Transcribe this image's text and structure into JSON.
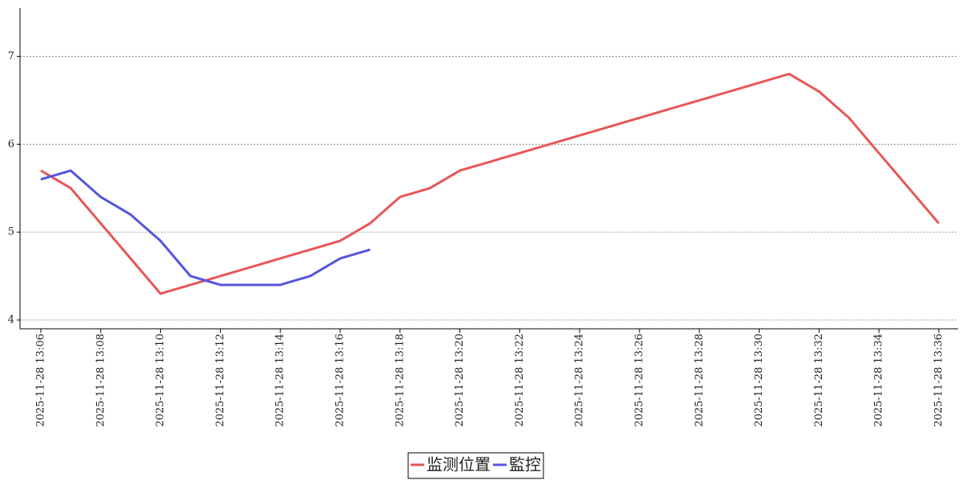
{
  "chart_data": {
    "type": "line",
    "x": [
      "2025-11-28 13:06",
      null,
      "2025-11-28 13:08",
      null,
      "2025-11-28 13:10",
      null,
      "2025-11-28 13:12",
      null,
      "2025-11-28 13:14",
      null,
      "2025-11-28 13:16",
      null,
      "2025-11-28 13:18",
      null,
      "2025-11-28 13:20",
      null,
      "2025-11-28 13:22",
      null,
      "2025-11-28 13:24",
      null,
      "2025-11-28 13:26",
      null,
      "2025-11-28 13:28",
      null,
      "2025-11-28 13:30",
      null,
      "2025-11-28 13:32",
      null,
      "2025-11-28 13:34",
      null,
      "2025-11-28 13:36"
    ],
    "series": [
      {
        "name": "监测位置",
        "color": "#e85656",
        "values": [
          5.7,
          5.5,
          5.1,
          4.7,
          4.3,
          4.4,
          4.5,
          4.6,
          4.7,
          4.8,
          4.9,
          5.1,
          5.4,
          5.5,
          5.7,
          5.8,
          5.9,
          6.0,
          6.1,
          6.2,
          6.3,
          6.4,
          6.5,
          6.6,
          6.7,
          6.8,
          6.6,
          6.3,
          5.9,
          5.5,
          5.1
        ]
      },
      {
        "name": "監控",
        "color": "#5555e0",
        "values": [
          5.6,
          5.7,
          5.4,
          5.2,
          4.9,
          4.5,
          4.4,
          4.4,
          4.4,
          4.5,
          4.7,
          4.8,
          null,
          null,
          null,
          null,
          null,
          null,
          null,
          null,
          null,
          null,
          null,
          null,
          null,
          null,
          null,
          null,
          null,
          null,
          null
        ]
      }
    ],
    "ylim": [
      3.9,
      7.55
    ],
    "yticks": [
      4,
      5,
      6,
      7
    ],
    "grid": true,
    "legend": "bottom"
  }
}
